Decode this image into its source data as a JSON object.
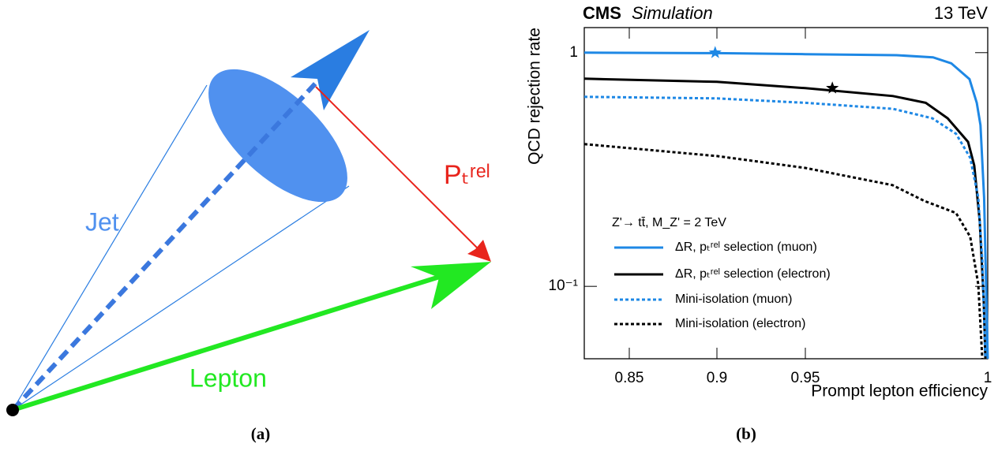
{
  "diagram": {
    "jet_label": "Jet",
    "lepton_label": "Lepton",
    "ptrel_label": "Pₜʳᵉˡ",
    "caption": "(a)"
  },
  "caption_b": "(b)",
  "chart_data": {
    "type": "line",
    "title": "CMS",
    "subtitle": "Simulation",
    "energy_label": "13 TeV",
    "x_label": "Prompt lepton efficiency",
    "y_label": "QCD rejection rate",
    "legend_title": "Z'→ tt̄, M_Z' = 2 TeV",
    "xlim": [
      0.824,
      1.0
    ],
    "xticks": [
      0.85,
      0.9,
      0.95,
      1
    ],
    "ylim": [
      0.049,
      1.28
    ],
    "yticks": [
      {
        "value": 0.1,
        "label": "10⁻¹"
      },
      1
    ],
    "log_y": true,
    "series": [
      {
        "name": "ΔR, pₜʳᵉˡ selection (muon)",
        "color": "#1e88e5",
        "dash": "solid",
        "x": [
          0.824,
          0.9,
          0.95,
          0.975,
          0.985,
          0.99,
          0.995,
          0.997,
          0.998,
          0.999,
          1.0
        ],
        "values": [
          1.0,
          0.995,
          0.985,
          0.975,
          0.955,
          0.9,
          0.77,
          0.61,
          0.49,
          0.24,
          0.049
        ]
      },
      {
        "name": "ΔR, pₜʳᵉˡ selection (electron)",
        "color": "#000000",
        "dash": "solid",
        "x": [
          0.824,
          0.9,
          0.95,
          0.974,
          0.983,
          0.989,
          0.9946,
          0.9963,
          0.9978,
          0.9989,
          0.99935
        ],
        "values": [
          0.774,
          0.75,
          0.705,
          0.652,
          0.61,
          0.524,
          0.415,
          0.329,
          0.191,
          0.0875,
          0.049
        ]
      },
      {
        "name": "Mini-isolation (muon)",
        "color": "#1e88e5",
        "dash": "dotted",
        "x": [
          0.824,
          0.9,
          0.95,
          0.974,
          0.9848,
          0.9913,
          0.9952,
          0.9974,
          0.9985,
          0.99935
        ],
        "values": [
          0.647,
          0.637,
          0.61,
          0.575,
          0.524,
          0.45,
          0.355,
          0.24,
          0.129,
          0.049
        ]
      },
      {
        "name": "Mini-isolation (electron)",
        "color": "#000000",
        "dash": "dotted",
        "x": [
          0.824,
          0.9,
          0.95,
          0.9739,
          0.9826,
          0.9913,
          0.9952,
          0.9974,
          0.9985
        ],
        "values": [
          0.406,
          0.361,
          0.321,
          0.271,
          0.232,
          0.206,
          0.163,
          0.102,
          0.049
        ]
      }
    ],
    "markers": [
      {
        "x": 0.899,
        "y": 1.0,
        "color": "#1e88e5"
      },
      {
        "x": 0.9574,
        "y": 0.705,
        "color": "#000000"
      }
    ]
  }
}
